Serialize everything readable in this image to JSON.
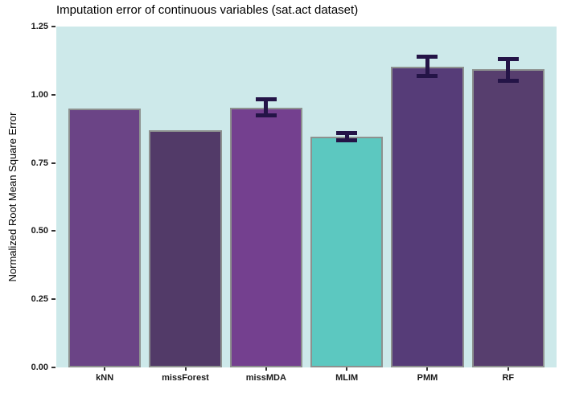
{
  "chart_data": {
    "type": "bar",
    "title": "Imputation error of continuous variables (sat.act dataset)",
    "ylabel": "Normalized Root Mean Square Error",
    "xlabel": "",
    "ylim": [
      0,
      1.25
    ],
    "yticks": [
      {
        "value": 0.0,
        "label": "0.00"
      },
      {
        "value": 0.25,
        "label": "0.25"
      },
      {
        "value": 0.5,
        "label": "0.50"
      },
      {
        "value": 0.75,
        "label": "0.75"
      },
      {
        "value": 1.0,
        "label": "1.00"
      },
      {
        "value": 1.25,
        "label": "1.25"
      }
    ],
    "grid": false,
    "legend": false,
    "categories": [
      "kNN",
      "missForest",
      "missMDA",
      "MLIM",
      "PMM",
      "RF"
    ],
    "values": [
      0.948,
      0.871,
      0.952,
      0.846,
      1.103,
      1.094
    ],
    "errors": [
      null,
      null,
      {
        "lower": 0.924,
        "upper": 0.982
      },
      {
        "lower": 0.834,
        "upper": 0.858
      },
      {
        "lower": 1.068,
        "upper": 1.138
      },
      {
        "lower": 1.052,
        "upper": 1.131
      }
    ],
    "bar_colors": [
      "#6b4486",
      "#523a68",
      "#74408f",
      "#5cc8c0",
      "#563c78",
      "#573e6e"
    ],
    "colors": {
      "panel_bg": "#cde9ea",
      "bar_border": "#8d918f",
      "error_bar": "#241447",
      "tick": "#333333",
      "tick_label": "#1a1a1a",
      "title": "#000000"
    }
  }
}
